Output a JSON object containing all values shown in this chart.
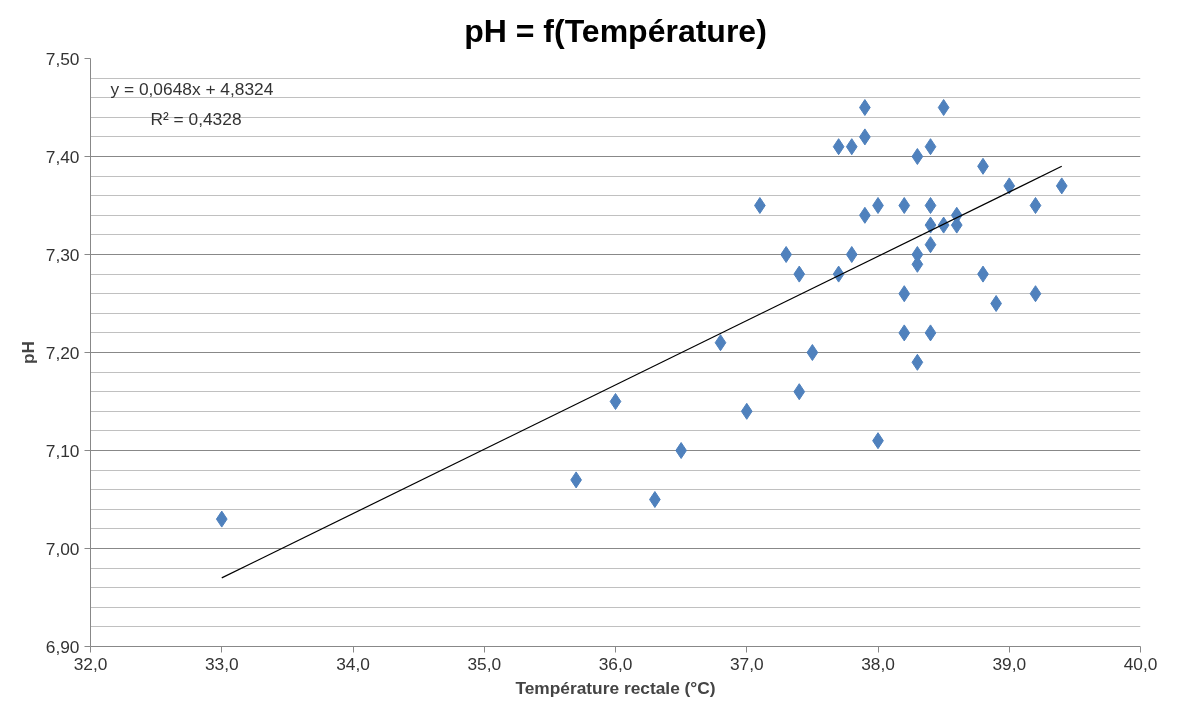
{
  "chart_data": {
    "type": "scatter",
    "title": "pH = f(Température)",
    "xlabel": "Température rectale (°C)",
    "ylabel": "pH",
    "xlim": [
      32,
      40
    ],
    "ylim": [
      6.9,
      7.5
    ],
    "xticks": [
      {
        "value": 32,
        "label": "32,0"
      },
      {
        "value": 33,
        "label": "33,0"
      },
      {
        "value": 34,
        "label": "34,0"
      },
      {
        "value": 35,
        "label": "35,0"
      },
      {
        "value": 36,
        "label": "36,0"
      },
      {
        "value": 37,
        "label": "37,0"
      },
      {
        "value": 38,
        "label": "38,0"
      },
      {
        "value": 39,
        "label": "39,0"
      },
      {
        "value": 40,
        "label": "40,0"
      }
    ],
    "yticks": [
      {
        "value": 6.9,
        "label": "6,90"
      },
      {
        "value": 7.0,
        "label": "7,00"
      },
      {
        "value": 7.1,
        "label": "7,10"
      },
      {
        "value": 7.2,
        "label": "7,20"
      },
      {
        "value": 7.3,
        "label": "7,30"
      },
      {
        "value": 7.4,
        "label": "7,40"
      },
      {
        "value": 7.5,
        "label": "7,50"
      }
    ],
    "grid": "y",
    "marker": "diamond",
    "annotations": [
      "y = 0,0648x + 4,8324",
      "R² = 0,4328"
    ],
    "series": [
      {
        "color": "#4f81bd",
        "x": [
          33.0,
          35.7,
          36.0,
          36.3,
          36.5,
          36.8,
          37.0,
          37.1,
          37.3,
          37.4,
          37.4,
          37.5,
          37.7,
          37.7,
          37.8,
          37.8,
          37.9,
          37.9,
          37.9,
          38.0,
          38.0,
          38.2,
          38.2,
          38.2,
          38.3,
          38.3,
          38.3,
          38.3,
          38.4,
          38.4,
          38.4,
          38.4,
          38.4,
          38.5,
          38.5,
          38.6,
          38.6,
          38.8,
          38.8,
          38.9,
          39.0,
          39.2,
          39.2,
          39.4
        ],
        "values": [
          7.03,
          7.07,
          7.15,
          7.05,
          7.1,
          7.21,
          7.14,
          7.35,
          7.3,
          7.28,
          7.16,
          7.2,
          7.41,
          7.28,
          7.41,
          7.3,
          7.45,
          7.42,
          7.34,
          7.35,
          7.11,
          7.35,
          7.26,
          7.22,
          7.4,
          7.3,
          7.29,
          7.19,
          7.41,
          7.35,
          7.33,
          7.31,
          7.22,
          7.45,
          7.33,
          7.34,
          7.33,
          7.39,
          7.28,
          7.25,
          7.37,
          7.35,
          7.26,
          7.37
        ]
      },
      {
        "type": "line",
        "marker": "none",
        "color": "#000000",
        "x": [
          33.0,
          39.4
        ],
        "values": [
          6.97,
          7.39
        ]
      }
    ]
  }
}
